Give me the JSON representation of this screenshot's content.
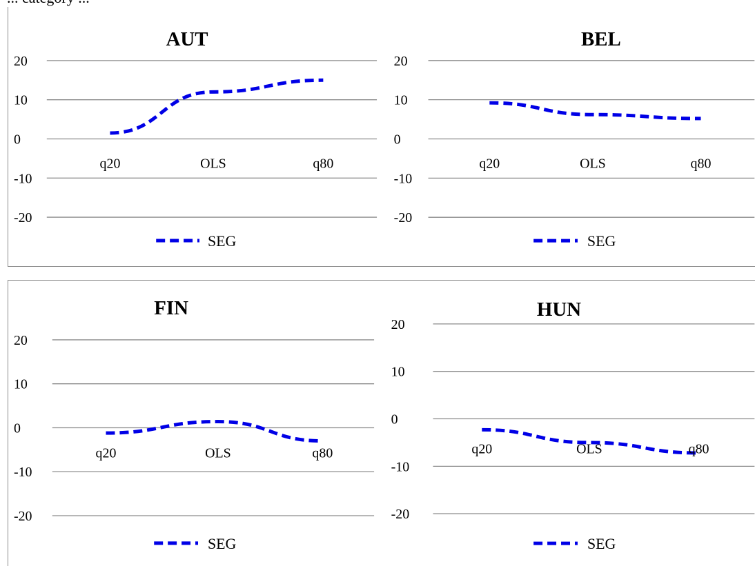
{
  "caption_fragment": "... category ...",
  "series_color": "#0000e6",
  "grid_color": "#8c8c8c",
  "chart_data": [
    {
      "type": "line",
      "title": "AUT",
      "categories": [
        "q20",
        "OLS",
        "q80"
      ],
      "series": [
        {
          "name": "SEG",
          "values": [
            1.5,
            12,
            15
          ]
        }
      ],
      "yticks": [
        "20",
        "10",
        "0",
        "-10",
        "-20"
      ],
      "ylim": [
        -20,
        20
      ],
      "grid": true,
      "legend": "bottom",
      "legend_label": "SEG"
    },
    {
      "type": "line",
      "title": "BEL",
      "categories": [
        "q20",
        "OLS",
        "q80"
      ],
      "series": [
        {
          "name": "SEG",
          "values": [
            9.2,
            6.2,
            5.2
          ]
        }
      ],
      "yticks": [
        "20",
        "10",
        "0",
        "-10",
        "-20"
      ],
      "ylim": [
        -20,
        20
      ],
      "grid": true,
      "legend": "bottom",
      "legend_label": "SEG"
    },
    {
      "type": "line",
      "title": "FIN",
      "categories": [
        "q20",
        "OLS",
        "q80"
      ],
      "series": [
        {
          "name": "SEG",
          "values": [
            -1.2,
            1.4,
            -3
          ]
        }
      ],
      "yticks": [
        "20",
        "10",
        "0",
        "-10",
        "-20"
      ],
      "ylim": [
        -20,
        20
      ],
      "grid": true,
      "legend": "bottom",
      "legend_label": "SEG"
    },
    {
      "type": "line",
      "title": "HUN",
      "categories": [
        "q20",
        "OLS",
        "q80"
      ],
      "series": [
        {
          "name": "SEG",
          "values": [
            -2.3,
            -5,
            -7.2
          ]
        }
      ],
      "yticks": [
        "20",
        "10",
        "0",
        "-10",
        "-20"
      ],
      "ylim": [
        -20,
        20
      ],
      "grid": true,
      "legend": "bottom",
      "legend_label": "SEG"
    }
  ]
}
